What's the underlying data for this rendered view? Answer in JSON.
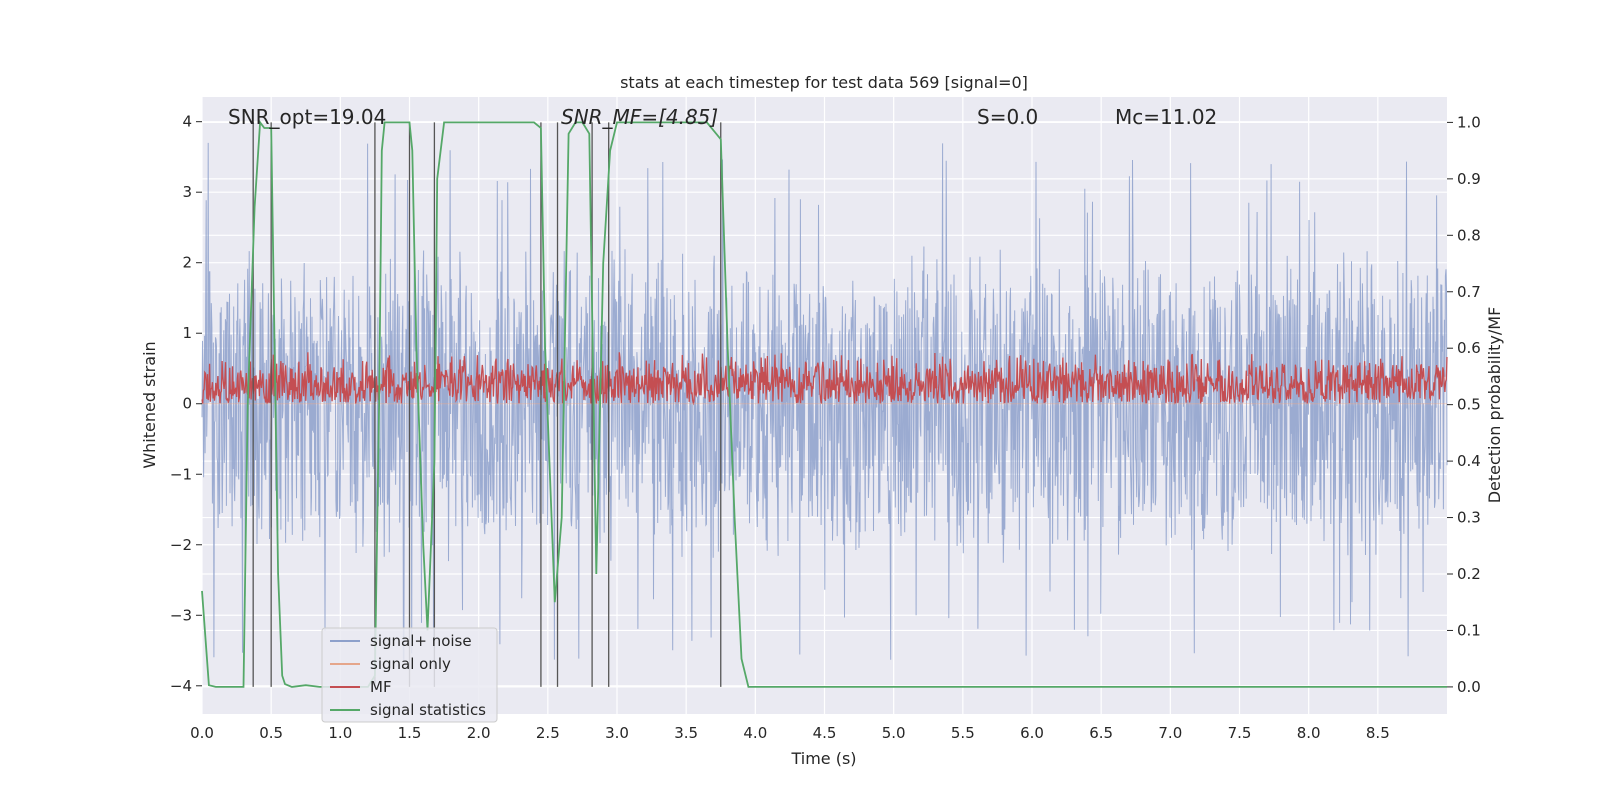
{
  "chart_data": {
    "type": "line",
    "title": "stats at each timestep for test data 569 [signal=0]",
    "xlabel": "Time (s)",
    "ylabel": "Whitened strain",
    "y2label": "Detection probability/MF",
    "xlim": [
      0,
      9.0
    ],
    "ylim": [
      -4.4,
      4.35
    ],
    "y2lim": [
      -0.048,
      1.045
    ],
    "xticks": [
      0.0,
      0.5,
      1.0,
      1.5,
      2.0,
      2.5,
      3.0,
      3.5,
      4.0,
      4.5,
      5.0,
      5.5,
      6.0,
      6.5,
      7.0,
      7.5,
      8.0,
      8.5
    ],
    "xtick_labels": [
      "0.0",
      "0.5",
      "1.0",
      "1.5",
      "2.0",
      "2.5",
      "3.0",
      "3.5",
      "4.0",
      "4.5",
      "5.0",
      "5.5",
      "6.0",
      "6.5",
      "7.0",
      "7.5",
      "8.0",
      "8.5"
    ],
    "yticks": [
      -4,
      -3,
      -2,
      -1,
      0,
      1,
      2,
      3,
      4
    ],
    "ytick_labels": [
      "−4",
      "−3",
      "−2",
      "−1",
      "0",
      "1",
      "2",
      "3",
      "4"
    ],
    "y2ticks": [
      0.0,
      0.1,
      0.2,
      0.3,
      0.4,
      0.5,
      0.6,
      0.7,
      0.8,
      0.9,
      1.0
    ],
    "y2tick_labels": [
      "0.0",
      "0.1",
      "0.2",
      "0.3",
      "0.4",
      "0.5",
      "0.6",
      "0.7",
      "0.8",
      "0.9",
      "1.0"
    ],
    "grid": true,
    "legend_position": "lower-left",
    "annotations": [
      {
        "text": "SNR_opt=19.04",
        "x": 0.2,
        "y": 4.0
      },
      {
        "text": "SNR_MF=[4.85]",
        "x": 2.6,
        "y": 4.0
      },
      {
        "text": "S=0.0",
        "x": 5.6,
        "y": 4.0
      },
      {
        "text": "Mc=11.02",
        "x": 6.6,
        "y": 4.0
      }
    ],
    "series": [
      {
        "name": "signal+ noise",
        "color": "#8da0cb",
        "axis": "left",
        "style": "noise",
        "envelope": 2.3,
        "peak_max": 3.7,
        "trough_min": -3.65
      },
      {
        "name": "signal only",
        "color": "#e5a68b",
        "axis": "left",
        "style": "flat",
        "values": [
          0.0
        ]
      },
      {
        "name": "MF",
        "color": "#c44e52",
        "axis": "left",
        "style": "band",
        "band_min": 0.0,
        "band_max": 0.75
      },
      {
        "name": "signal statistics",
        "color": "#55a868",
        "axis": "right",
        "x": [
          0.0,
          0.05,
          0.1,
          0.3,
          0.33,
          0.38,
          0.42,
          0.45,
          0.5,
          0.55,
          0.58,
          0.6,
          0.65,
          0.75,
          0.85,
          1.0,
          1.2,
          1.25,
          1.28,
          1.3,
          1.32,
          1.5,
          1.52,
          1.55,
          1.6,
          1.63,
          1.68,
          1.7,
          1.75,
          2.4,
          2.45,
          2.48,
          2.55,
          2.6,
          2.65,
          2.7,
          2.75,
          2.8,
          2.85,
          2.9,
          2.95,
          3.0,
          3.65,
          3.75,
          3.8,
          3.85,
          3.9,
          3.95,
          4.5,
          9.0
        ],
        "y": [
          0.17,
          0.003,
          0.0,
          0.0,
          0.5,
          0.85,
          1.0,
          0.99,
          0.99,
          0.2,
          0.02,
          0.005,
          0.0,
          0.003,
          0.0,
          0.0,
          0.0,
          0.02,
          0.5,
          0.95,
          1.0,
          1.0,
          0.95,
          0.6,
          0.25,
          0.1,
          0.4,
          0.9,
          1.0,
          1.0,
          0.99,
          0.6,
          0.15,
          0.3,
          0.98,
          1.0,
          1.0,
          0.98,
          0.2,
          0.75,
          0.95,
          1.0,
          1.0,
          0.97,
          0.6,
          0.3,
          0.05,
          0.0,
          0.0,
          0.0
        ]
      }
    ],
    "vlines": [
      0.37,
      0.5,
      1.25,
      1.5,
      1.68,
      2.45,
      2.57,
      2.82,
      2.94,
      3.75
    ]
  }
}
